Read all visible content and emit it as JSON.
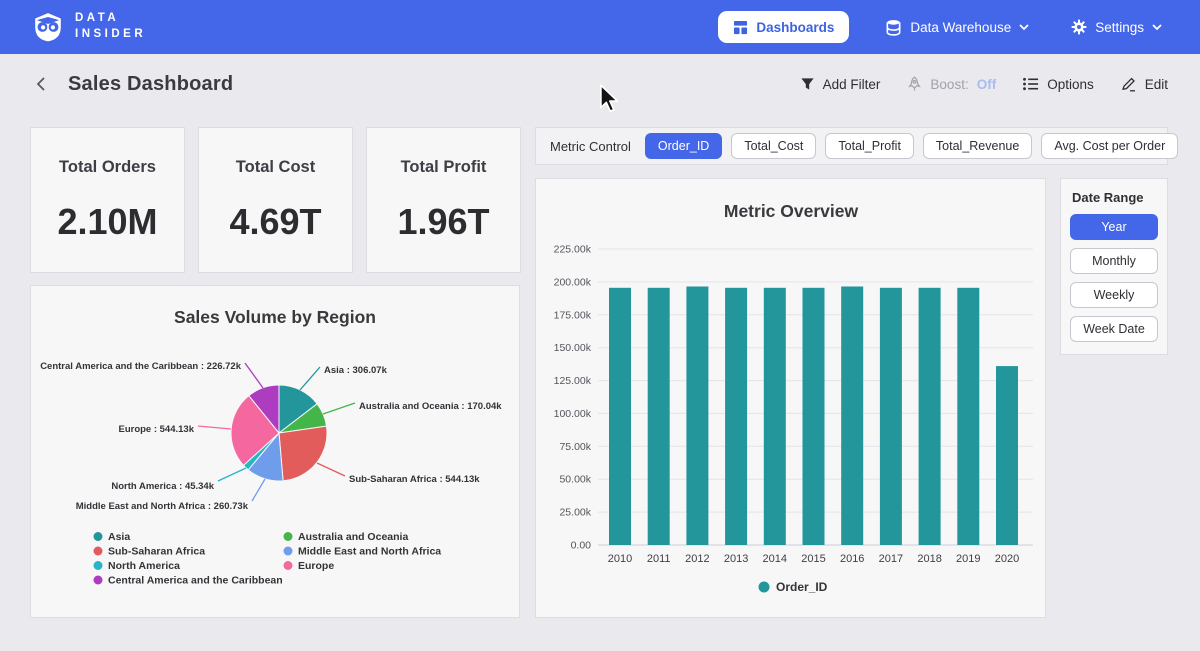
{
  "navbar": {
    "brand_line1": "DATA",
    "brand_line2": "INSIDER",
    "dashboards_label": "Dashboards",
    "data_warehouse_label": "Data Warehouse",
    "settings_label": "Settings"
  },
  "header": {
    "title": "Sales Dashboard",
    "add_filter_label": "Add Filter",
    "boost_label": "Boost:",
    "boost_state": "Off",
    "options_label": "Options",
    "edit_label": "Edit"
  },
  "kpis": [
    {
      "label": "Total Orders",
      "value": "2.10M"
    },
    {
      "label": "Total Cost",
      "value": "4.69T"
    },
    {
      "label": "Total Profit",
      "value": "1.96T"
    }
  ],
  "metric_control": {
    "label": "Metric Control",
    "options": [
      "Order_ID",
      "Total_Cost",
      "Total_Profit",
      "Total_Revenue",
      "Avg. Cost per Order"
    ],
    "selected": "Order_ID"
  },
  "date_range": {
    "label": "Date Range",
    "options": [
      "Year",
      "Monthly",
      "Weekly",
      "Week Date"
    ],
    "selected": "Year"
  },
  "colors": {
    "accent_blue": "#4466e8",
    "teal": "#22969b",
    "page_bg": "#e9e9ee",
    "panel_bg": "#f7f7f8"
  },
  "chart_data": [
    {
      "type": "pie",
      "title": "Sales Volume by Region",
      "slices": [
        {
          "name": "Asia",
          "value": 306070,
          "label": "Asia : 306.07k",
          "color": "#22969b"
        },
        {
          "name": "Australia and Oceania",
          "value": 170040,
          "label": "Australia and Oceania : 170.04k",
          "color": "#43b549"
        },
        {
          "name": "Sub-Saharan Africa",
          "value": 544130,
          "label": "Sub-Saharan Africa : 544.13k",
          "color": "#e25c5c"
        },
        {
          "name": "Middle East and North Africa",
          "value": 260730,
          "label": "Middle East and North Africa : 260.73k",
          "color": "#6f9ceb"
        },
        {
          "name": "North America",
          "value": 45340,
          "label": "North America : 45.34k",
          "color": "#27b5c8"
        },
        {
          "name": "Europe",
          "value": 544130,
          "label": "Europe : 544.13k",
          "color": "#f4679f"
        },
        {
          "name": "Central America and the Caribbean",
          "value": 226720,
          "label": "Central America and the Caribbean : 226.72k",
          "color": "#ad3cc0"
        }
      ],
      "legend_order": [
        [
          "Asia",
          "Sub-Saharan Africa",
          "North America",
          "Central America and the Caribbean"
        ],
        [
          "Australia and Oceania",
          "Middle East and North Africa",
          "Europe"
        ]
      ],
      "legend_position": "bottom"
    },
    {
      "type": "bar",
      "title": "Metric Overview",
      "categories": [
        "2010",
        "2011",
        "2012",
        "2013",
        "2014",
        "2015",
        "2016",
        "2017",
        "2018",
        "2019",
        "2020"
      ],
      "series": [
        {
          "name": "Order_ID",
          "color": "#22969b",
          "values": [
            195500,
            195500,
            196500,
            195500,
            195500,
            195500,
            196500,
            195500,
            195500,
            195500,
            136000
          ]
        }
      ],
      "y_ticks": [
        "225.00k",
        "200.00k",
        "175.00k",
        "150.00k",
        "125.00k",
        "100.00k",
        "75.00k",
        "50.00k",
        "25.00k",
        "0.00"
      ],
      "ylim": [
        0,
        225000
      ],
      "xlabel": "",
      "ylabel": "",
      "grid": true,
      "legend": "Order_ID",
      "legend_position": "bottom"
    }
  ]
}
